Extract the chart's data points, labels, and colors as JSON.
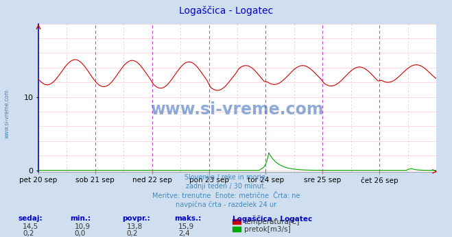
{
  "title": "Logaščica - Logatec",
  "title_color": "#0000cc",
  "bg_color": "#d0dff0",
  "plot_bg_color": "#ffffff",
  "x_labels": [
    "pet 20 sep",
    "sob 21 sep",
    "ned 22 sep",
    "pon 23 sep",
    "tor 24 sep",
    "sre 25 sep",
    "čet 26 sep"
  ],
  "y_axis_color": "#0000dd",
  "temp_color": "#cc0000",
  "flow_color": "#00aa00",
  "vline_color_main": "#cc44cc",
  "vline_color_mid": "#888888",
  "hline_color": "#ffcccc",
  "n_points": 336,
  "watermark": "www.si-vreme.com",
  "watermark_color": "#3366bb",
  "subtitle_lines": [
    "Slovenija / reke in morje.",
    "zadnji teden / 30 minut.",
    "Meritve: trenutne  Enote: metrične  Črta: ne",
    "navpična črta - razdelek 24 ur"
  ],
  "subtitle_color": "#4488bb",
  "sidebar_text": "www.si-vreme.com",
  "sidebar_color": "#4488bb",
  "stats_headers": [
    "sedaj:",
    "min.:",
    "povpr.:",
    "maks.:"
  ],
  "stats_header_color": "#0000cc",
  "stats_values_temp": [
    "14,5",
    "10,9",
    "13,8",
    "15,9"
  ],
  "stats_values_flow": [
    "0,2",
    "0,0",
    "0,2",
    "2,4"
  ],
  "legend_title": "Logaščica - Logatec",
  "legend_items": [
    "temperatura[C]",
    "pretok[m3/s]"
  ],
  "legend_colors": [
    "#cc0000",
    "#00aa00"
  ],
  "y_max": 20,
  "flow_max": 2.4,
  "arrow_color": "#cc0000"
}
